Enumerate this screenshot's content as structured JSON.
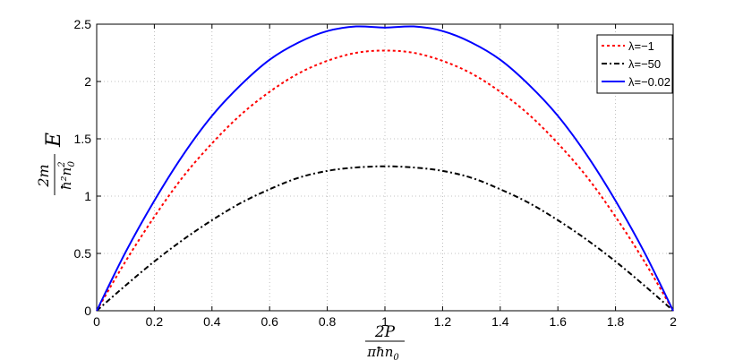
{
  "chart_data": {
    "type": "line",
    "xlim": [
      0,
      2
    ],
    "ylim": [
      0,
      2.5
    ],
    "grid": true,
    "legend_position": "top-right",
    "x_ticks": [
      "0",
      "0.2",
      "0.4",
      "0.6",
      "0.8",
      "1",
      "1.2",
      "1.4",
      "1.6",
      "1.8",
      "2"
    ],
    "y_ticks": [
      "0",
      "0.5",
      "1",
      "1.5",
      "2",
      "2.5"
    ],
    "xlabel": {
      "numerator": "2P",
      "denominator": "πħn",
      "denominator_sub": "0"
    },
    "ylabel": {
      "numerator": "2m",
      "denominator": "ħ²n",
      "denominator_sup": "2",
      "denominator_sub": "0",
      "suffix": "E"
    },
    "series": [
      {
        "name": "λ=−1",
        "color": "#ff0000",
        "style": "dotted",
        "x": [
          0,
          0.1,
          0.2,
          0.3,
          0.4,
          0.5,
          0.6,
          0.7,
          0.8,
          0.9,
          1.0,
          1.1,
          1.2,
          1.3,
          1.4,
          1.5,
          1.6,
          1.7,
          1.8,
          1.9,
          2.0
        ],
        "y": [
          0,
          0.43,
          0.82,
          1.17,
          1.46,
          1.71,
          1.91,
          2.07,
          2.18,
          2.25,
          2.27,
          2.25,
          2.18,
          2.07,
          1.91,
          1.71,
          1.46,
          1.17,
          0.82,
          0.43,
          0
        ]
      },
      {
        "name": "λ=−50",
        "color": "#000000",
        "style": "dashdot",
        "x": [
          0,
          0.1,
          0.2,
          0.3,
          0.4,
          0.5,
          0.6,
          0.7,
          0.8,
          0.9,
          1.0,
          1.1,
          1.2,
          1.3,
          1.4,
          1.5,
          1.6,
          1.7,
          1.8,
          1.9,
          2.0
        ],
        "y": [
          0,
          0.22,
          0.43,
          0.62,
          0.79,
          0.94,
          1.06,
          1.16,
          1.22,
          1.25,
          1.26,
          1.25,
          1.22,
          1.16,
          1.06,
          0.94,
          0.79,
          0.62,
          0.43,
          0.22,
          0
        ]
      },
      {
        "name": "λ=−0.02",
        "color": "#0000ff",
        "style": "solid",
        "x": [
          0,
          0.1,
          0.2,
          0.3,
          0.4,
          0.5,
          0.6,
          0.7,
          0.8,
          0.9,
          1.0,
          1.1,
          1.2,
          1.3,
          1.4,
          1.5,
          1.6,
          1.7,
          1.8,
          1.9,
          2.0
        ],
        "y": [
          0,
          0.51,
          0.96,
          1.36,
          1.7,
          1.97,
          2.19,
          2.34,
          2.44,
          2.48,
          2.47,
          2.48,
          2.44,
          2.34,
          2.19,
          1.97,
          1.7,
          1.36,
          0.96,
          0.51,
          0
        ]
      }
    ]
  }
}
